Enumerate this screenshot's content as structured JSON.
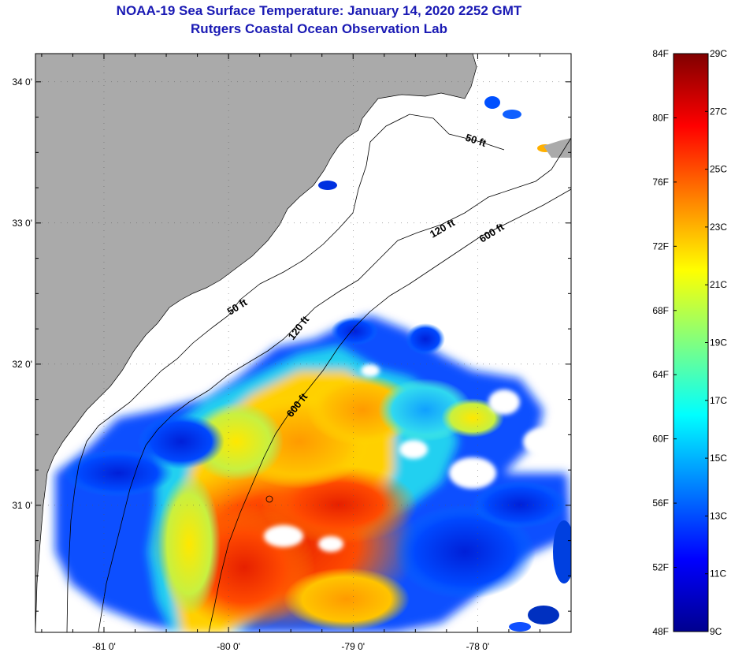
{
  "header": {
    "title": "NOAA-19 Sea Surface Temperature:  January 14, 2020 2252 GMT",
    "subtitle": "Rutgers Coastal Ocean Observation Lab"
  },
  "map": {
    "lon_range": [
      -81.55,
      -77.25
    ],
    "lat_range": [
      30.1,
      34.2
    ],
    "x_ticks": [
      {
        "value": -81,
        "label": "-81 0'"
      },
      {
        "value": -80,
        "label": "-80 0'"
      },
      {
        "value": -79,
        "label": "-79 0'"
      },
      {
        "value": -78,
        "label": "-78 0'"
      }
    ],
    "y_ticks": [
      {
        "value": 34,
        "label": "34 0'"
      },
      {
        "value": 33,
        "label": "33 0'"
      },
      {
        "value": 32,
        "label": "32 0'"
      },
      {
        "value": 31,
        "label": "31 0'"
      }
    ],
    "contour_labels": [
      "50 ft",
      "50 ft",
      "120 ft",
      "120 ft",
      "600 ft",
      "600 ft"
    ],
    "colors": {
      "land": "#aaaaaa",
      "ocean_no_data": "#ffffff"
    }
  },
  "colorbar": {
    "min_f": 48,
    "max_f": 84,
    "min_c": 9,
    "max_c": 29,
    "f_labels": [
      "84F",
      "80F",
      "76F",
      "72F",
      "68F",
      "64F",
      "60F",
      "56F",
      "52F",
      "48F"
    ],
    "c_labels": [
      "29C",
      "27C",
      "25C",
      "23C",
      "21C",
      "19C",
      "17C",
      "15C",
      "13C",
      "11C",
      "9C"
    ],
    "colors": [
      "#00008f",
      "#0000ff",
      "#0080ff",
      "#00ffff",
      "#80ff80",
      "#ffff00",
      "#ff8000",
      "#ff0000",
      "#800000"
    ]
  }
}
